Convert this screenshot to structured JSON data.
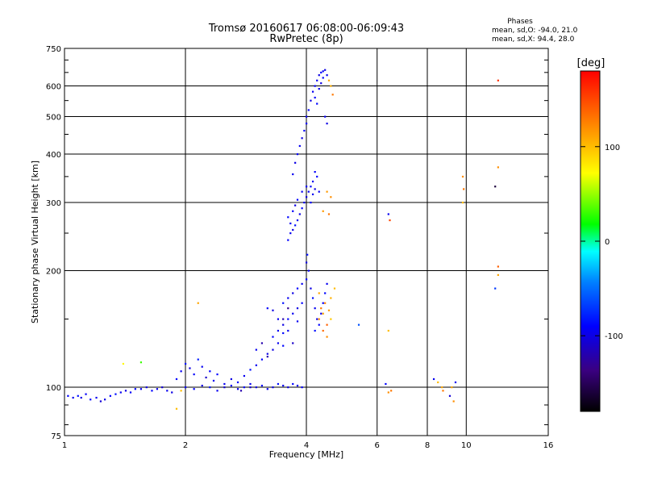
{
  "header": {
    "title_line1": "Tromsø 20160617 06:08:00-06:09:43",
    "title_line2": "RwPretec (8p)",
    "phases_title": "Phases",
    "phases_o": "mean, sd,O: -94.0, 21.0",
    "phases_x": "mean, sd,X:  94.4, 28.0"
  },
  "colorbar": {
    "label": "[deg]",
    "ticks": [
      "100",
      "0",
      "-100"
    ],
    "tick_values": [
      100,
      0,
      -100
    ],
    "range": [
      -180,
      180
    ]
  },
  "chart_data": {
    "type": "scatter",
    "xlabel": "Frequency [MHz]",
    "ylabel": "Stationary phase Virtual Height [km]",
    "x_scale": "log2",
    "y_scale": "log",
    "xlim": [
      1,
      16
    ],
    "ylim": [
      75,
      750
    ],
    "x_ticks": [
      1,
      2,
      4,
      6,
      8,
      10,
      16
    ],
    "x_tick_labels": [
      "1",
      "2",
      "4",
      "6",
      "8",
      "10",
      "16"
    ],
    "y_ticks": [
      75,
      100,
      200,
      300,
      400,
      500,
      600,
      750
    ],
    "y_tick_labels": [
      "75",
      "100",
      "200",
      "300",
      "400",
      "500",
      "600",
      "750"
    ],
    "grid": true,
    "points": [
      [
        1.02,
        95,
        -90
      ],
      [
        1.05,
        94,
        -95
      ],
      [
        1.08,
        95,
        -85
      ],
      [
        1.1,
        94,
        -100
      ],
      [
        1.13,
        96,
        -92
      ],
      [
        1.16,
        93,
        -88
      ],
      [
        1.2,
        94,
        -95
      ],
      [
        1.23,
        92,
        -105
      ],
      [
        1.26,
        93,
        -98
      ],
      [
        1.3,
        95,
        -90
      ],
      [
        1.34,
        96,
        -85
      ],
      [
        1.38,
        97,
        -95
      ],
      [
        1.42,
        98,
        -100
      ],
      [
        1.46,
        97,
        -92
      ],
      [
        1.5,
        99,
        -88
      ],
      [
        1.55,
        99,
        -95
      ],
      [
        1.6,
        100,
        -100
      ],
      [
        1.65,
        98,
        -90
      ],
      [
        1.7,
        99,
        -97
      ],
      [
        1.75,
        100,
        -105
      ],
      [
        1.8,
        98,
        -95
      ],
      [
        1.85,
        97,
        -100
      ],
      [
        1.9,
        105,
        -90
      ],
      [
        1.95,
        110,
        -95
      ],
      [
        2.0,
        115,
        -85
      ],
      [
        2.05,
        112,
        -100
      ],
      [
        2.1,
        108,
        -92
      ],
      [
        2.15,
        118,
        -80
      ],
      [
        2.2,
        113,
        -95
      ],
      [
        2.25,
        106,
        -110
      ],
      [
        2.3,
        110,
        -90
      ],
      [
        2.35,
        104,
        -95
      ],
      [
        2.4,
        108,
        -88
      ],
      [
        2.5,
        102,
        -95
      ],
      [
        2.6,
        105,
        -100
      ],
      [
        2.7,
        103,
        -90
      ],
      [
        2.8,
        107,
        -95
      ],
      [
        2.9,
        111,
        -85
      ],
      [
        3.0,
        114,
        -95
      ],
      [
        3.1,
        118,
        -90
      ],
      [
        3.2,
        120,
        -120
      ],
      [
        3.3,
        125,
        -100
      ],
      [
        3.4,
        130,
        -95
      ],
      [
        3.5,
        128,
        -88
      ],
      [
        2.0,
        100,
        -95
      ],
      [
        2.1,
        99,
        -90
      ],
      [
        2.2,
        101,
        -100
      ],
      [
        2.3,
        100,
        -85
      ],
      [
        2.4,
        98,
        -95
      ],
      [
        2.5,
        100,
        -105
      ],
      [
        2.6,
        101,
        -92
      ],
      [
        2.7,
        99,
        -97
      ],
      [
        2.8,
        100,
        -88
      ],
      [
        2.9,
        102,
        -95
      ],
      [
        3.0,
        100,
        -100
      ],
      [
        3.1,
        101,
        -90
      ],
      [
        3.2,
        99,
        -95
      ],
      [
        3.3,
        100,
        -98
      ],
      [
        3.4,
        102,
        -85
      ],
      [
        3.5,
        101,
        -95
      ],
      [
        3.6,
        100,
        -100
      ],
      [
        3.7,
        102,
        -90
      ],
      [
        3.8,
        101,
        -95
      ],
      [
        3.9,
        100,
        -92
      ],
      [
        3.0,
        125,
        -95
      ],
      [
        3.1,
        130,
        -120
      ],
      [
        3.2,
        122,
        -100
      ],
      [
        3.3,
        135,
        -90
      ],
      [
        3.4,
        140,
        -95
      ],
      [
        3.5,
        145,
        -100
      ],
      [
        3.6,
        150,
        -88
      ],
      [
        3.7,
        155,
        -95
      ],
      [
        3.8,
        160,
        -100
      ],
      [
        3.9,
        165,
        -90
      ],
      [
        3.6,
        140,
        -95
      ],
      [
        3.7,
        130,
        -110
      ],
      [
        3.8,
        148,
        -95
      ],
      [
        3.5,
        138,
        -88
      ],
      [
        3.4,
        150,
        -95
      ],
      [
        3.3,
        158,
        -100
      ],
      [
        3.2,
        160,
        -92
      ],
      [
        3.5,
        165,
        -85
      ],
      [
        3.6,
        170,
        -95
      ],
      [
        3.7,
        175,
        -100
      ],
      [
        3.8,
        180,
        -90
      ],
      [
        3.9,
        185,
        -95
      ],
      [
        4.0,
        190,
        -90
      ],
      [
        4.05,
        200,
        -95
      ],
      [
        4.1,
        180,
        -100
      ],
      [
        4.15,
        170,
        -85
      ],
      [
        4.2,
        160,
        -95
      ],
      [
        4.25,
        150,
        -100
      ],
      [
        4.3,
        145,
        -90
      ],
      [
        4.35,
        155,
        -95
      ],
      [
        4.4,
        165,
        -92
      ],
      [
        4.45,
        175,
        -88
      ],
      [
        4.5,
        185,
        -95
      ],
      [
        4.0,
        210,
        -100
      ],
      [
        4.02,
        220,
        -85
      ],
      [
        4.3,
        150,
        120
      ],
      [
        4.35,
        160,
        130
      ],
      [
        4.4,
        155,
        110
      ],
      [
        4.45,
        165,
        125
      ],
      [
        4.5,
        145,
        140
      ],
      [
        4.55,
        158,
        115
      ],
      [
        4.6,
        170,
        105
      ],
      [
        4.5,
        135,
        120
      ],
      [
        4.4,
        140,
        135
      ],
      [
        4.6,
        150,
        95
      ],
      [
        4.3,
        175,
        110
      ],
      [
        4.7,
        180,
        100
      ],
      [
        3.6,
        240,
        -90
      ],
      [
        3.65,
        250,
        -95
      ],
      [
        3.7,
        255,
        -100
      ],
      [
        3.75,
        262,
        -85
      ],
      [
        3.8,
        270,
        -95
      ],
      [
        3.85,
        280,
        -100
      ],
      [
        3.9,
        290,
        -90
      ],
      [
        3.95,
        300,
        -95
      ],
      [
        3.7,
        285,
        -92
      ],
      [
        3.6,
        275,
        -88
      ],
      [
        3.65,
        265,
        -95
      ],
      [
        3.75,
        295,
        -100
      ],
      [
        3.8,
        305,
        -90
      ],
      [
        3.9,
        320,
        -95
      ],
      [
        4.0,
        330,
        -92
      ],
      [
        3.7,
        355,
        -95
      ],
      [
        3.75,
        380,
        -100
      ],
      [
        3.8,
        400,
        -90
      ],
      [
        3.85,
        420,
        -95
      ],
      [
        3.9,
        440,
        -100
      ],
      [
        3.95,
        460,
        -90
      ],
      [
        4.0,
        480,
        -95
      ],
      [
        4.0,
        310,
        -100
      ],
      [
        4.05,
        320,
        -95
      ],
      [
        4.1,
        330,
        -90
      ],
      [
        4.15,
        315,
        -95
      ],
      [
        4.2,
        325,
        -100
      ],
      [
        4.1,
        300,
        -90
      ],
      [
        4.15,
        340,
        -95
      ],
      [
        4.2,
        360,
        -92
      ],
      [
        4.25,
        350,
        -88
      ],
      [
        4.3,
        320,
        -95
      ],
      [
        4.0,
        500,
        -95
      ],
      [
        4.05,
        520,
        -90
      ],
      [
        4.1,
        550,
        -100
      ],
      [
        4.15,
        580,
        -95
      ],
      [
        4.2,
        600,
        -90
      ],
      [
        4.25,
        620,
        -95
      ],
      [
        4.3,
        640,
        -100
      ],
      [
        4.35,
        650,
        -90
      ],
      [
        4.4,
        655,
        -95
      ],
      [
        4.45,
        660,
        -100
      ],
      [
        4.5,
        640,
        -95
      ],
      [
        4.2,
        560,
        -92
      ],
      [
        4.25,
        540,
        -88
      ],
      [
        4.3,
        590,
        -95
      ],
      [
        4.35,
        610,
        -100
      ],
      [
        4.4,
        630,
        -90
      ],
      [
        4.45,
        500,
        -95
      ],
      [
        4.5,
        480,
        -100
      ],
      [
        4.55,
        620,
        110
      ],
      [
        4.6,
        600,
        105
      ],
      [
        4.65,
        570,
        130
      ],
      [
        4.5,
        320,
        115
      ],
      [
        4.6,
        310,
        120
      ],
      [
        4.55,
        280,
        130
      ],
      [
        4.4,
        285,
        115
      ],
      [
        5.4,
        145,
        -60
      ],
      [
        6.4,
        280,
        -95
      ],
      [
        6.45,
        270,
        150
      ],
      [
        6.4,
        140,
        100
      ],
      [
        6.5,
        98,
        130
      ],
      [
        6.4,
        97,
        120
      ],
      [
        6.3,
        102,
        -90
      ],
      [
        8.3,
        105,
        -95
      ],
      [
        8.5,
        103,
        100
      ],
      [
        8.7,
        100,
        110
      ],
      [
        8.75,
        98,
        130
      ],
      [
        9.1,
        95,
        -105
      ],
      [
        9.2,
        100,
        110
      ],
      [
        9.3,
        92,
        120
      ],
      [
        9.4,
        103,
        -95
      ],
      [
        9.8,
        350,
        120
      ],
      [
        9.85,
        325,
        130
      ],
      [
        9.8,
        300,
        100
      ],
      [
        12.0,
        620,
        160
      ],
      [
        12.0,
        370,
        120
      ],
      [
        12.0,
        205,
        140
      ],
      [
        12.0,
        195,
        110
      ],
      [
        11.8,
        330,
        -160
      ],
      [
        11.8,
        180,
        -70
      ],
      [
        1.4,
        115,
        75
      ],
      [
        1.55,
        116,
        30
      ],
      [
        1.9,
        88,
        100
      ],
      [
        1.95,
        98,
        100
      ],
      [
        2.15,
        165,
        110
      ],
      [
        2.9,
        100,
        -105
      ],
      [
        2.75,
        98,
        -120
      ],
      [
        4.2,
        140,
        -85
      ],
      [
        3.6,
        160,
        -130
      ],
      [
        3.5,
        150,
        -120
      ]
    ]
  }
}
